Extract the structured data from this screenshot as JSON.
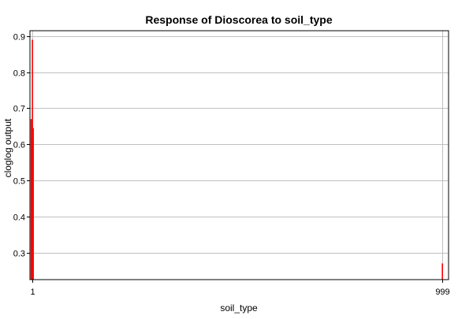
{
  "chart_data": {
    "type": "bar",
    "title": "Response of Dioscorea to soil_type",
    "xlabel": "soil_type",
    "ylabel": "cloglog output",
    "xlim": [
      -4,
      1014
    ],
    "ylim": [
      0.225,
      0.915
    ],
    "y_ticks": [
      0.3,
      0.4,
      0.5,
      0.6,
      0.7,
      0.8,
      0.9
    ],
    "x_ticks": [
      1,
      999
    ],
    "grid": true,
    "bar_color": "#ff0000",
    "series": [
      {
        "values": [
          {
            "x": -1,
            "y": 0.67
          },
          {
            "x": 0,
            "y": 0.445
          },
          {
            "x": 1,
            "y": 0.615
          },
          {
            "x": 2,
            "y": 0.89
          },
          {
            "x": 3,
            "y": 0.615
          },
          {
            "x": 4,
            "y": 0.645
          },
          {
            "x": 999,
            "y": 0.27
          }
        ]
      }
    ]
  }
}
